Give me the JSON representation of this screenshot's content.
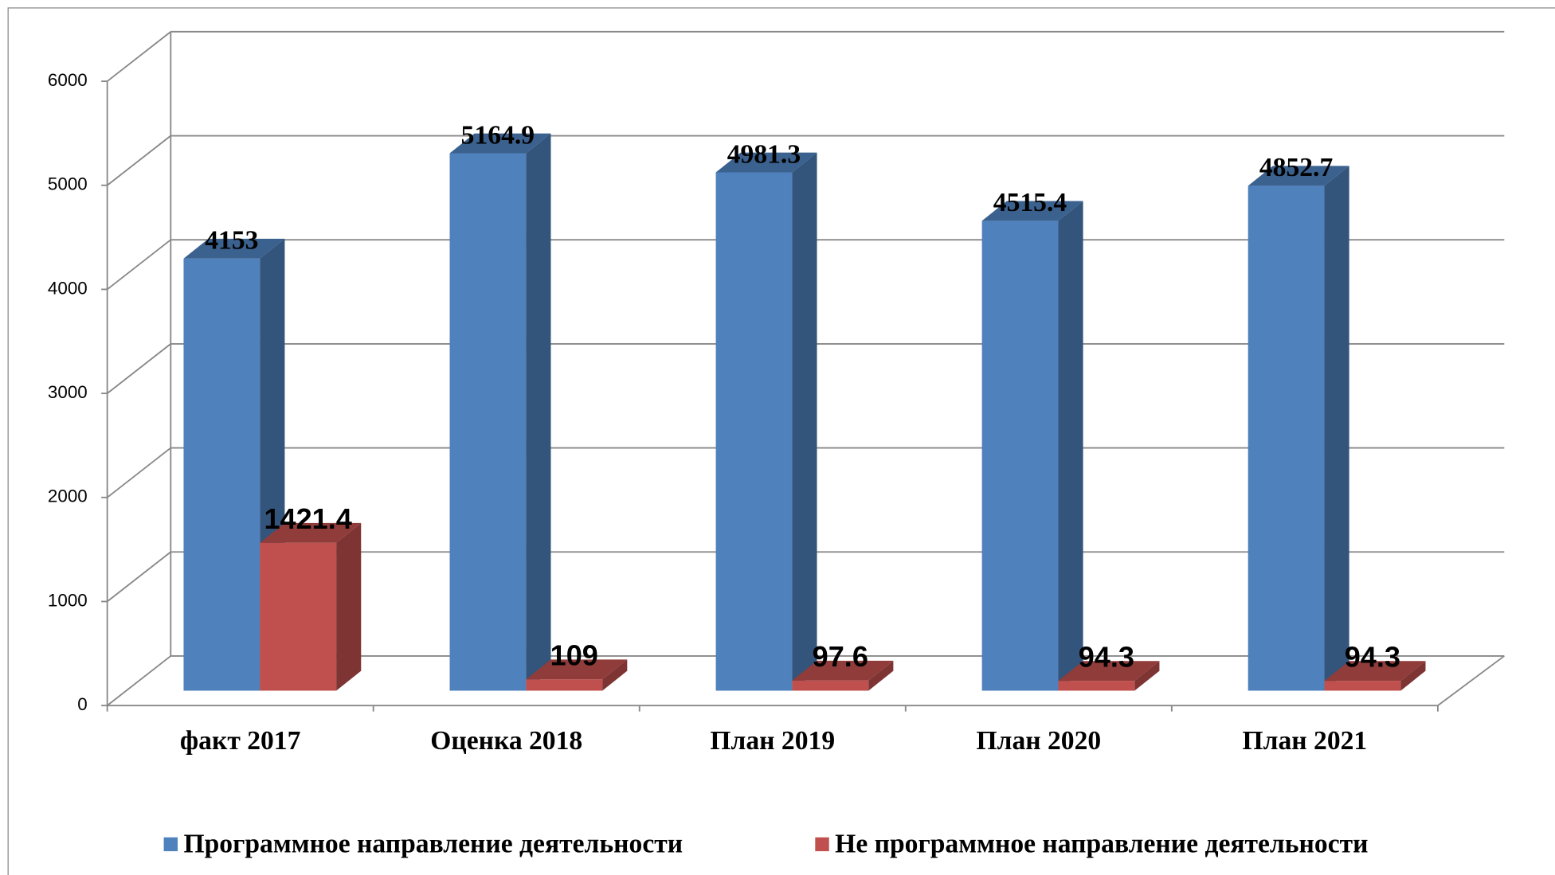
{
  "chart_data": {
    "type": "bar3d",
    "categories": [
      "факт 2017",
      "Оценка 2018",
      "План 2019",
      "План 2020",
      "План 2021"
    ],
    "series": [
      {
        "name": "Программное направление деятельности",
        "color": "#4f81bd",
        "values": [
          4153,
          5164.9,
          4981.3,
          4515.4,
          4852.7
        ]
      },
      {
        "name": "Не программное направление деятельности",
        "color": "#c0504d",
        "values": [
          1421.4,
          109,
          97.6,
          94.3,
          94.3
        ]
      }
    ],
    "ylim": [
      0,
      6000
    ],
    "yticks": [
      0,
      1000,
      2000,
      3000,
      4000,
      5000,
      6000
    ],
    "grid": true,
    "legend": "bottom"
  }
}
